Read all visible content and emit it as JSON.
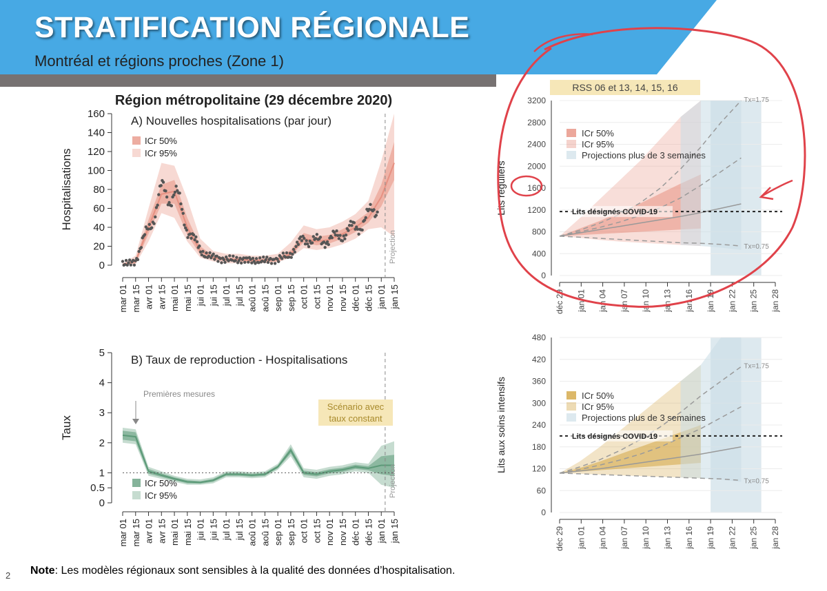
{
  "header": {
    "title": "STRATIFICATION RÉGIONALE",
    "subtitle": "Montréal et régions proches (Zone 1)"
  },
  "left_title": "Région métropolitaine (29 décembre 2020)",
  "note": {
    "bold": "Note",
    "text": ": Les modèles régionaux sont sensibles à la qualité des données d’hospitalisation."
  },
  "page_number": "2",
  "colors": {
    "header_blue": "#47a9e4",
    "header_gray": "#777272",
    "hosp_band": "#e79182",
    "repro_band": "#5c9a78",
    "icu_band": "#d3a644",
    "projection_band": "#dde9ef",
    "annotation_red": "#e0424a"
  },
  "chart_data": [
    {
      "type": "line",
      "panel_title": "A) Nouvelles hospitalisations (par jour)",
      "ylabel": "Hospitalisations",
      "ylim": [
        0,
        160
      ],
      "yticks": [
        0,
        20,
        40,
        60,
        80,
        100,
        120,
        140,
        160
      ],
      "xticks": [
        "mar 01",
        "mar 15",
        "avr 01",
        "avr 15",
        "mai 01",
        "mai 15",
        "jui 01",
        "jui 15",
        "jul 01",
        "jul 15",
        "aoû 01",
        "aoû 15",
        "sep 01",
        "sep 15",
        "oct 01",
        "oct 15",
        "nov 01",
        "nov 15",
        "déc 01",
        "déc 15",
        "jan 01",
        "jan 15"
      ],
      "legend": [
        "ICr 50%",
        "ICr 95%"
      ],
      "projection_label": "Projection",
      "x": [
        "mar 01",
        "mar 15",
        "avr 01",
        "avr 15",
        "mai 01",
        "mai 15",
        "jui 01",
        "jui 15",
        "jul 01",
        "jul 15",
        "aoû 01",
        "aoû 15",
        "sep 01",
        "sep 15",
        "oct 01",
        "oct 15",
        "nov 01",
        "nov 15",
        "déc 01",
        "déc 15",
        "jan 01",
        "jan 15"
      ],
      "median": [
        1,
        4,
        40,
        75,
        78,
        40,
        15,
        8,
        6,
        6,
        5,
        5,
        6,
        12,
        28,
        25,
        27,
        33,
        40,
        50,
        72,
        108
      ],
      "band95_low": [
        0,
        1,
        25,
        55,
        50,
        25,
        8,
        4,
        2,
        2,
        2,
        2,
        3,
        8,
        18,
        16,
        18,
        22,
        28,
        38,
        40,
        30
      ],
      "band95_high": [
        2,
        10,
        60,
        108,
        105,
        70,
        28,
        15,
        12,
        12,
        10,
        10,
        12,
        24,
        42,
        38,
        40,
        46,
        54,
        68,
        110,
        160
      ],
      "band50_low": [
        0,
        2,
        33,
        65,
        65,
        32,
        11,
        6,
        4,
        4,
        3,
        3,
        4,
        10,
        24,
        21,
        23,
        28,
        35,
        45,
        62,
        90
      ],
      "band50_high": [
        1,
        6,
        48,
        85,
        90,
        50,
        20,
        10,
        8,
        8,
        7,
        7,
        8,
        16,
        34,
        30,
        32,
        38,
        46,
        56,
        85,
        130
      ]
    },
    {
      "type": "line",
      "panel_title": "B) Taux de reproduction - Hospitalisations",
      "ylabel": "Taux",
      "ylim": [
        0,
        5
      ],
      "yticks": [
        0,
        0.5,
        1,
        2,
        3,
        4,
        5
      ],
      "xticks": [
        "mar 01",
        "mar 15",
        "avr 01",
        "avr 15",
        "mai 01",
        "mai 15",
        "jui 01",
        "jui 15",
        "jul 01",
        "jul 15",
        "aoû 01",
        "aoû 15",
        "sep 01",
        "sep 15",
        "oct 01",
        "oct 15",
        "nov 01",
        "nov 15",
        "déc 01",
        "déc 15",
        "jan 01",
        "jan 15"
      ],
      "legend": [
        "ICr 50%",
        "ICr 95%"
      ],
      "annotations": [
        "Premières mesures",
        "Scénario avec taux constant"
      ],
      "projection_label": "Projection",
      "x": [
        "mar 01",
        "mar 15",
        "avr 01",
        "avr 15",
        "mai 01",
        "mai 15",
        "jui 01",
        "jui 15",
        "jul 01",
        "jul 15",
        "aoû 01",
        "aoû 15",
        "sep 01",
        "sep 15",
        "oct 01",
        "oct 15",
        "nov 01",
        "nov 15",
        "déc 01",
        "déc 15",
        "jan 01",
        "jan 15"
      ],
      "median": [
        2.25,
        2.2,
        1.05,
        0.92,
        0.8,
        0.7,
        0.68,
        0.75,
        0.95,
        0.95,
        0.92,
        0.95,
        1.2,
        1.75,
        1.0,
        0.95,
        1.05,
        1.1,
        1.2,
        1.15,
        1.25,
        1.25
      ],
      "band95_low": [
        2.0,
        1.95,
        0.9,
        0.8,
        0.7,
        0.6,
        0.6,
        0.65,
        0.85,
        0.85,
        0.82,
        0.85,
        1.1,
        1.55,
        0.85,
        0.8,
        0.9,
        0.95,
        1.05,
        1.0,
        0.6,
        0.5
      ],
      "band95_high": [
        2.5,
        2.45,
        1.2,
        1.05,
        0.9,
        0.8,
        0.78,
        0.85,
        1.05,
        1.05,
        1.02,
        1.05,
        1.3,
        1.95,
        1.15,
        1.1,
        1.2,
        1.25,
        1.35,
        1.3,
        1.9,
        2.05
      ],
      "band50_low": [
        2.1,
        2.05,
        0.97,
        0.86,
        0.75,
        0.65,
        0.64,
        0.7,
        0.9,
        0.9,
        0.87,
        0.9,
        1.15,
        1.65,
        0.93,
        0.88,
        0.98,
        1.03,
        1.13,
        1.08,
        0.95,
        0.9
      ],
      "band50_high": [
        2.4,
        2.35,
        1.13,
        0.98,
        0.85,
        0.75,
        0.72,
        0.8,
        1.0,
        1.0,
        0.97,
        1.0,
        1.25,
        1.85,
        1.07,
        1.02,
        1.12,
        1.17,
        1.27,
        1.22,
        1.55,
        1.6
      ],
      "reference_line": 1
    },
    {
      "type": "line",
      "panel_title": "RSS 06 et 13, 14, 15, 16",
      "ylabel": "Lits réguliers",
      "ylim": [
        0,
        3200
      ],
      "yticks": [
        0,
        400,
        800,
        1200,
        1600,
        2000,
        2400,
        2800,
        3200
      ],
      "xticks": [
        "déc 29",
        "jan 01",
        "jan 04",
        "jan 07",
        "jan 10",
        "jan 13",
        "jan 16",
        "jan 19",
        "jan 22",
        "jan 25",
        "jan 28"
      ],
      "legend": [
        "ICr 50%",
        "ICr 95%",
        "Projections plus de 3 semaines"
      ],
      "reference": {
        "label": "Lits désignés COVID-19",
        "value": 1170
      },
      "scenario_labels": {
        "high": "Tx=1.75",
        "low": "Tx=0.75"
      },
      "x": [
        "déc 29",
        "jan 01",
        "jan 04",
        "jan 07",
        "jan 10",
        "jan 13",
        "jan 16",
        "jan 19",
        "jan 22",
        "jan 25"
      ],
      "median": [
        720,
        780,
        840,
        900,
        960,
        1020,
        1080,
        1150,
        1230,
        1310
      ],
      "band95_low": [
        720,
        690,
        650,
        620,
        600,
        580,
        560,
        540,
        510,
        470
      ],
      "band95_high": [
        720,
        1050,
        1400,
        1750,
        2100,
        2500,
        2900,
        3300,
        3300,
        3300
      ],
      "band50_low": [
        720,
        740,
        760,
        780,
        800,
        820,
        840,
        860,
        870,
        880
      ],
      "band50_high": [
        720,
        860,
        1000,
        1160,
        1320,
        1500,
        1680,
        1850,
        1980,
        2100
      ],
      "scenario_high": [
        720,
        830,
        960,
        1120,
        1330,
        1600,
        1950,
        2350,
        2800,
        3250
      ],
      "scenario_mid": [
        720,
        800,
        880,
        980,
        1100,
        1240,
        1420,
        1650,
        1900,
        2150
      ],
      "scenario_low": [
        720,
        700,
        680,
        660,
        640,
        620,
        600,
        590,
        570,
        540
      ]
    },
    {
      "type": "line",
      "panel_title": "",
      "ylabel": "Lits aux soins intensifs",
      "ylim": [
        0,
        480
      ],
      "yticks": [
        0,
        60,
        120,
        180,
        240,
        300,
        360,
        420,
        480
      ],
      "xticks": [
        "déc 29",
        "jan 01",
        "jan 04",
        "jan 07",
        "jan 10",
        "jan 13",
        "jan 16",
        "jan 19",
        "jan 22",
        "jan 25",
        "jan 28"
      ],
      "legend": [
        "ICr 50%",
        "ICr 95%",
        "Projections plus de 3 semaines"
      ],
      "reference": {
        "label": "Lits désignés COVID-19",
        "value": 210
      },
      "scenario_labels": {
        "high": "Tx=1.75",
        "low": "Tx=0.75"
      },
      "x": [
        "déc 29",
        "jan 01",
        "jan 04",
        "jan 07",
        "jan 10",
        "jan 13",
        "jan 16",
        "jan 19",
        "jan 22",
        "jan 25"
      ],
      "median": [
        108,
        114,
        120,
        128,
        136,
        144,
        152,
        160,
        170,
        180
      ],
      "band95_low": [
        108,
        106,
        104,
        102,
        100,
        98,
        96,
        94,
        90,
        84
      ],
      "band95_high": [
        108,
        140,
        180,
        225,
        270,
        315,
        360,
        405,
        480,
        480
      ],
      "band50_low": [
        108,
        112,
        116,
        120,
        124,
        128,
        132,
        136,
        140,
        144
      ],
      "band50_high": [
        108,
        122,
        140,
        160,
        180,
        200,
        220,
        240,
        280,
        320
      ],
      "scenario_high": [
        108,
        125,
        145,
        170,
        200,
        235,
        275,
        320,
        360,
        400
      ],
      "scenario_mid": [
        108,
        118,
        130,
        144,
        160,
        180,
        205,
        230,
        260,
        290
      ],
      "scenario_low": [
        108,
        106,
        104,
        102,
        100,
        98,
        96,
        94,
        92,
        88
      ]
    }
  ]
}
